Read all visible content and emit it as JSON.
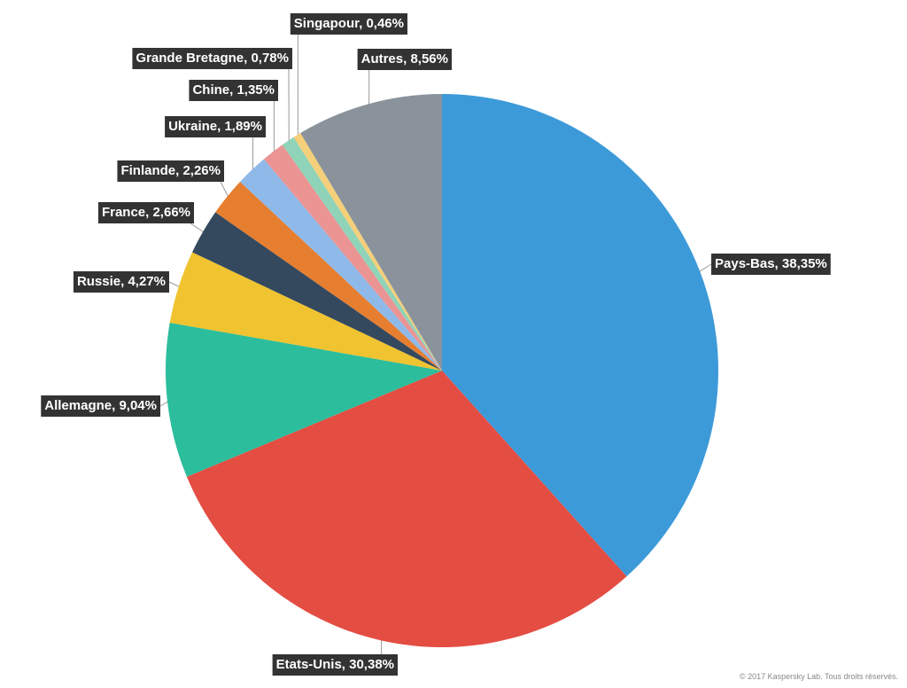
{
  "chart_data": {
    "type": "pie",
    "labels": [
      "Pays-Bas, 38,35%",
      "Etats-Unis, 30,38%",
      "Allemagne, 9,04%",
      "Russie, 4,27%",
      "France, 2,66%",
      "Finlande, 2,26%",
      "Ukraine, 1,89%",
      "Chine, 1,35%",
      "Grande Bretagne, 0,78%",
      "Singapour, 0,46%",
      "Autres, 8,56%"
    ],
    "values": [
      38.35,
      30.38,
      9.04,
      4.27,
      2.66,
      2.26,
      1.89,
      1.35,
      0.78,
      0.46,
      8.56
    ],
    "colors": [
      "#3d9ad9",
      "#e44d42",
      "#2bbd9c",
      "#f0c330",
      "#34495e",
      "#e67e30",
      "#8fb9e8",
      "#ea9494",
      "#8fd3b8",
      "#f5cf7a",
      "#8a939b"
    ],
    "source": "© 2017 Kaspersky Lab. Tous droits réservés."
  }
}
